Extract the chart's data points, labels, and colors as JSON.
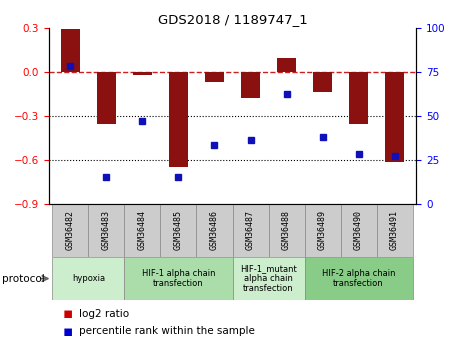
{
  "title": "GDS2018 / 1189747_1",
  "samples": [
    "GSM36482",
    "GSM36483",
    "GSM36484",
    "GSM36485",
    "GSM36486",
    "GSM36487",
    "GSM36488",
    "GSM36489",
    "GSM36490",
    "GSM36491"
  ],
  "log2_ratio": [
    0.29,
    -0.36,
    -0.02,
    -0.65,
    -0.07,
    -0.18,
    0.09,
    -0.14,
    -0.36,
    -0.62
  ],
  "percentile_rank": [
    78,
    15,
    47,
    15,
    33,
    36,
    62,
    38,
    28,
    27
  ],
  "ylim_left": [
    -0.9,
    0.3
  ],
  "ylim_right": [
    0,
    100
  ],
  "yticks_left": [
    -0.9,
    -0.6,
    -0.3,
    0.0,
    0.3
  ],
  "yticks_right": [
    0,
    25,
    50,
    75,
    100
  ],
  "bar_color": "#8B1010",
  "dot_color": "#1010BB",
  "hline_color": "#CC2020",
  "hline_style": "--",
  "dotline_color": "black",
  "dotline_y": [
    -0.3,
    -0.6
  ],
  "protocols": [
    {
      "label": "hypoxia",
      "start": 0,
      "end": 1,
      "color": "#cceecc"
    },
    {
      "label": "HIF-1 alpha chain\ntransfection",
      "start": 2,
      "end": 4,
      "color": "#aaddaa"
    },
    {
      "label": "HIF-1_mutant\nalpha chain\ntransfection",
      "start": 5,
      "end": 6,
      "color": "#cceecc"
    },
    {
      "label": "HIF-2 alpha chain\ntransfection",
      "start": 7,
      "end": 9,
      "color": "#88cc88"
    }
  ],
  "legend_labels": [
    "log2 ratio",
    "percentile rank within the sample"
  ],
  "legend_colors": [
    "#CC0000",
    "#0000CC"
  ],
  "bar_width": 0.55,
  "protocol_label": "protocol",
  "sample_box_color": "#cccccc",
  "sample_box_edge": "#888888"
}
